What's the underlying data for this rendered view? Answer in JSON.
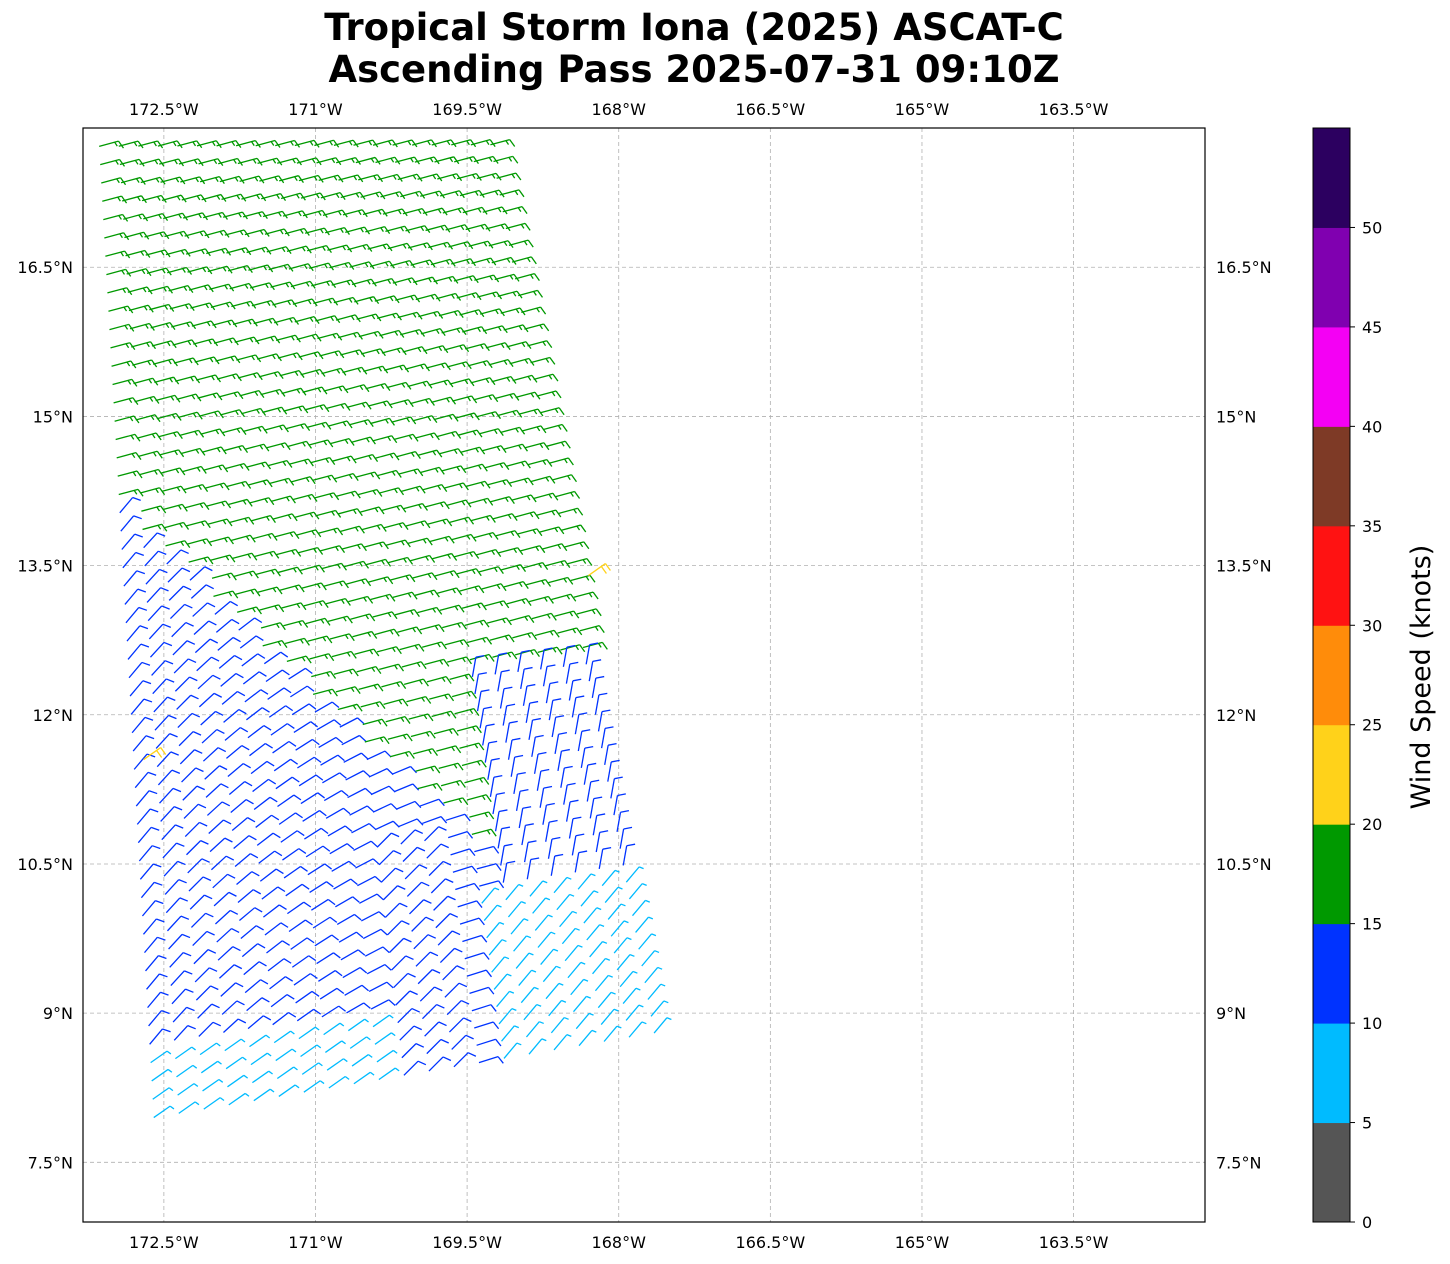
{
  "chart_data": {
    "type": "wind-barb-map",
    "title": [
      "Tropical Storm Iona (2025) ASCAT-C",
      "Ascending Pass 2025-07-31 09:10Z"
    ],
    "lon_range": [
      -173.3,
      -162.2
    ],
    "lat_range": [
      6.9,
      17.9
    ],
    "lon_ticks": [
      -172.5,
      -171,
      -169.5,
      -168,
      -166.5,
      -165,
      -163.5
    ],
    "lon_tick_labels": [
      "172.5°W",
      "171°W",
      "169.5°W",
      "168°W",
      "166.5°W",
      "165°W",
      "163.5°W"
    ],
    "lat_ticks": [
      7.5,
      9,
      10.5,
      12,
      13.5,
      15,
      16.5
    ],
    "lat_tick_labels": [
      "7.5°N",
      "9°N",
      "10.5°N",
      "12°N",
      "13.5°N",
      "15°N",
      "16.5°N"
    ],
    "swath": {
      "corners_lonlat": [
        [
          -173.15,
          17.9
        ],
        [
          -169.3,
          17.9
        ],
        [
          -167.65,
          8.8
        ],
        [
          -172.6,
          7.95
        ]
      ],
      "columns": 21,
      "rows": 55,
      "speed_range_knots": [
        0,
        55
      ]
    },
    "colorbar": {
      "label": "Wind Speed (knots)",
      "bounds": [
        0,
        5,
        10,
        15,
        20,
        25,
        30,
        35,
        40,
        45,
        50,
        55
      ],
      "colors": [
        "#555555",
        "#00bbff",
        "#0033ff",
        "#009900",
        "#ffd21a",
        "#ff8c0a",
        "#ff1212",
        "#7e3a26",
        "#f400f4",
        "#8000b0",
        "#2c0060"
      ],
      "tick_labels": [
        "0",
        "5",
        "10",
        "15",
        "20",
        "25",
        "30",
        "35",
        "40",
        "45",
        "50"
      ]
    }
  }
}
